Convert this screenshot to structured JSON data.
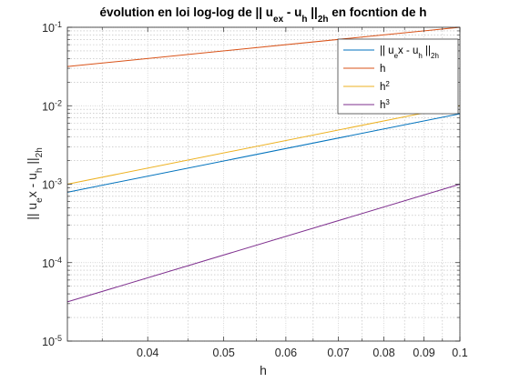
{
  "chart_data": {
    "type": "line",
    "title_parts": [
      {
        "t": "évolution en loi log-log de || u"
      },
      {
        "t": "ex",
        "sub": true
      },
      {
        "t": " - u"
      },
      {
        "t": "h",
        "sub": true
      },
      {
        "t": " ||"
      },
      {
        "t": "2h",
        "sub": true
      },
      {
        "t": " en focntion de h"
      }
    ],
    "xlabel": "h",
    "ylabel_parts": [
      {
        "t": "|| u"
      },
      {
        "t": "e",
        "sub": true
      },
      {
        "t": "x - u"
      },
      {
        "t": "h",
        "sub": true
      },
      {
        "t": " ||"
      },
      {
        "t": "2h",
        "sub": true
      }
    ],
    "x_scale": "log",
    "y_scale": "log",
    "xlim": [
      0.0316,
      0.1
    ],
    "ylim": [
      1e-05,
      0.1
    ],
    "x_ticks": [
      0.04,
      0.05,
      0.06,
      0.07,
      0.08,
      0.09,
      0.1
    ],
    "x_tick_labels": [
      "0.04",
      "0.05",
      "0.06",
      "0.07",
      "0.08",
      "0.09",
      "0.1"
    ],
    "y_ticks": [
      1e-05,
      0.0001,
      0.001,
      0.01,
      0.1
    ],
    "y_tick_labels": [
      {
        "base": "10",
        "exp": "-5"
      },
      {
        "base": "10",
        "exp": "-4"
      },
      {
        "base": "10",
        "exp": "-3"
      },
      {
        "base": "10",
        "exp": "-2"
      },
      {
        "base": "10",
        "exp": "-1"
      }
    ],
    "grid": true,
    "minor_grid": true,
    "legend_position": "top-right",
    "series": [
      {
        "legend_parts": [
          {
            "t": "|| u"
          },
          {
            "t": "e",
            "sub": true
          },
          {
            "t": "x - u"
          },
          {
            "t": "h",
            "sub": true
          },
          {
            "t": " ||"
          },
          {
            "t": "2h",
            "sub": true
          }
        ],
        "color": "#0072BD",
        "x": [
          0.0316,
          0.1
        ],
        "y": [
          0.00079,
          0.0079
        ]
      },
      {
        "legend_parts": [
          {
            "t": "h"
          }
        ],
        "color": "#D95319",
        "x": [
          0.0316,
          0.1
        ],
        "y": [
          0.0316,
          0.1
        ]
      },
      {
        "legend_parts": [
          {
            "t": "h"
          },
          {
            "t": "2",
            "sup": true
          }
        ],
        "color": "#EDB120",
        "x": [
          0.0316,
          0.1
        ],
        "y": [
          0.001,
          0.01
        ]
      },
      {
        "legend_parts": [
          {
            "t": "h"
          },
          {
            "t": "3",
            "sup": true
          }
        ],
        "color": "#7E2F8E",
        "x": [
          0.0316,
          0.1
        ],
        "y": [
          3.16e-05,
          0.001
        ]
      }
    ]
  }
}
